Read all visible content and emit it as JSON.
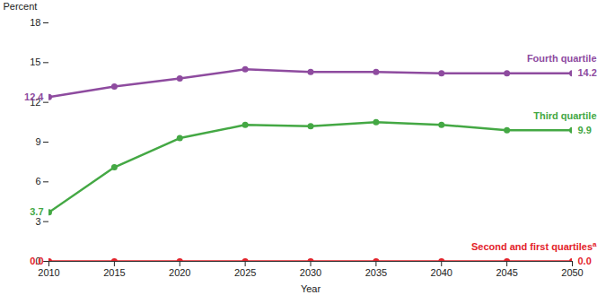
{
  "chart_data": {
    "type": "line",
    "y_label": "Percent",
    "x_label": "Year",
    "x": [
      2010,
      2015,
      2020,
      2025,
      2030,
      2035,
      2040,
      2045,
      2050
    ],
    "xlim": [
      2010,
      2050
    ],
    "xticks": [
      2010,
      2015,
      2020,
      2025,
      2030,
      2035,
      2040,
      2045,
      2050
    ],
    "ylim": [
      0,
      18
    ],
    "yticks": [
      0,
      3,
      6,
      9,
      12,
      15,
      18
    ],
    "grid": false,
    "marker": "circle",
    "data_labels": true,
    "series": [
      {
        "name": "Fourth quartile",
        "color": "#8e4b9f",
        "values": [
          12.4,
          13.2,
          13.8,
          14.5,
          14.3,
          14.3,
          14.2,
          14.2,
          14.2
        ],
        "value_labels": [
          "12.4",
          null,
          null,
          null,
          null,
          null,
          null,
          null,
          "14.2"
        ]
      },
      {
        "name": "Third quartile",
        "color": "#44a844",
        "values": [
          3.7,
          7.1,
          9.3,
          10.3,
          10.2,
          10.5,
          10.3,
          9.9,
          9.9
        ],
        "value_labels": [
          "3.7",
          null,
          null,
          null,
          null,
          null,
          null,
          null,
          "9.9"
        ]
      },
      {
        "name": "Second and first quartiles",
        "name_superscript": "a",
        "color": "#e3232b",
        "values": [
          0,
          0,
          0,
          0,
          0,
          0,
          0,
          0,
          0
        ],
        "value_labels": [
          "0.0",
          null,
          null,
          null,
          null,
          null,
          null,
          null,
          "0.0"
        ]
      }
    ]
  }
}
